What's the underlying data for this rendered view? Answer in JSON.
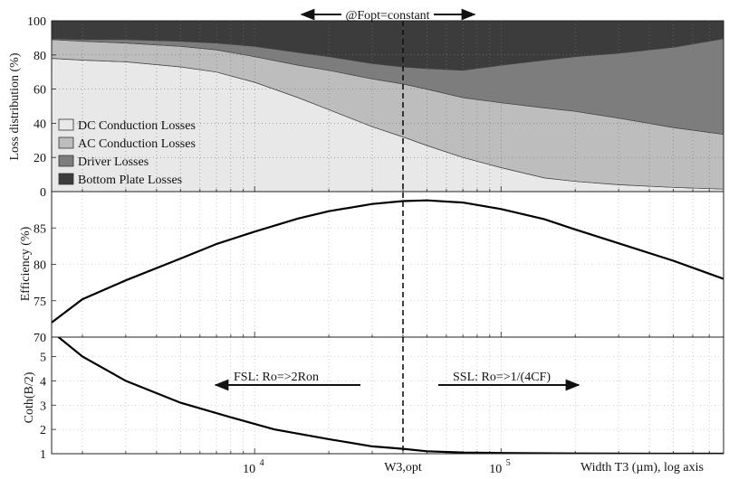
{
  "chart_data": [
    {
      "type": "area",
      "stacked": true,
      "x_scale": "log",
      "xlim": [
        1500,
        800000
      ],
      "ylim": [
        0,
        100
      ],
      "ylabel": "Loss distribution (%)",
      "yticks": [
        "0",
        "20",
        "40",
        "60",
        "80",
        "100"
      ],
      "grid": true,
      "legend_position": "left-bottom",
      "annotation_top": "@Fopt=constant",
      "x": [
        1500,
        2000,
        3000,
        5000,
        7000,
        10000,
        15000,
        20000,
        30000,
        40000,
        50000,
        70000,
        100000,
        150000,
        200000,
        300000,
        500000,
        800000
      ],
      "series": [
        {
          "name": "DC Conduction Losses",
          "color": "#e8e8e8",
          "values": [
            78,
            77,
            76,
            73,
            70,
            64,
            55,
            48,
            38,
            32,
            27,
            20,
            14,
            8,
            6,
            4,
            2.5,
            1.5
          ]
        },
        {
          "name": "AC Conduction Losses",
          "color": "#bdbdbd",
          "values": [
            11,
            11,
            11,
            12,
            13,
            15,
            19,
            23,
            28,
            31,
            33,
            35,
            38,
            41,
            41,
            39,
            35,
            32
          ]
        },
        {
          "name": "Driver Losses",
          "color": "#7d7d7d",
          "values": [
            0.5,
            1,
            2,
            3,
            4,
            6,
            7.5,
            8,
            9,
            10,
            12,
            16,
            22,
            28,
            32,
            38,
            47,
            56
          ]
        },
        {
          "name": "Bottom Plate Losses",
          "color": "#3c3c3c",
          "values": [
            10.5,
            11,
            11,
            12,
            13,
            15,
            18.5,
            21,
            25,
            27,
            28,
            29,
            26,
            23,
            21,
            19,
            15.5,
            10.5
          ]
        }
      ]
    },
    {
      "type": "line",
      "x_scale": "log",
      "xlim": [
        1500,
        800000
      ],
      "ylim": [
        70,
        90
      ],
      "ylabel": "Efficiency (%)",
      "yticks": [
        "70",
        "75",
        "80",
        "85"
      ],
      "grid": true,
      "x": [
        1500,
        2000,
        3000,
        5000,
        7000,
        10000,
        15000,
        20000,
        30000,
        40000,
        50000,
        70000,
        100000,
        150000,
        200000,
        300000,
        500000,
        800000
      ],
      "series": [
        {
          "values": [
            72,
            75.2,
            77.8,
            80.8,
            82.8,
            84.5,
            86.3,
            87.3,
            88.3,
            88.7,
            88.8,
            88.5,
            87.6,
            86.2,
            84.8,
            82.9,
            80.5,
            78
          ]
        }
      ]
    },
    {
      "type": "line",
      "x_scale": "log",
      "xlim": [
        1500,
        800000
      ],
      "ylim": [
        1,
        5.8
      ],
      "ylabel": "Coth(B/2)",
      "yticks": [
        "1",
        "2",
        "3",
        "4",
        "5"
      ],
      "xticks": [
        {
          "value": 10000,
          "base": "10",
          "exp": "4"
        },
        {
          "value": 100000,
          "base": "10",
          "exp": "5"
        }
      ],
      "xlabel": "Width T3 (µm), log axis",
      "grid": true,
      "x": [
        1600,
        2000,
        3000,
        5000,
        8000,
        12000,
        20000,
        30000,
        40000,
        50000,
        70000,
        100000,
        200000,
        400000,
        800000
      ],
      "series": [
        {
          "values": [
            5.8,
            5.0,
            4.0,
            3.1,
            2.5,
            2.0,
            1.6,
            1.3,
            1.2,
            1.1,
            1.05,
            1.03,
            1.01,
            1.0,
            1.0
          ]
        }
      ],
      "annotations": [
        "FSL: Ro=>2Ron",
        "SSL: Ro=>1/(4CF)"
      ]
    }
  ],
  "vline": {
    "x": 40000,
    "label": "W3,opt"
  }
}
